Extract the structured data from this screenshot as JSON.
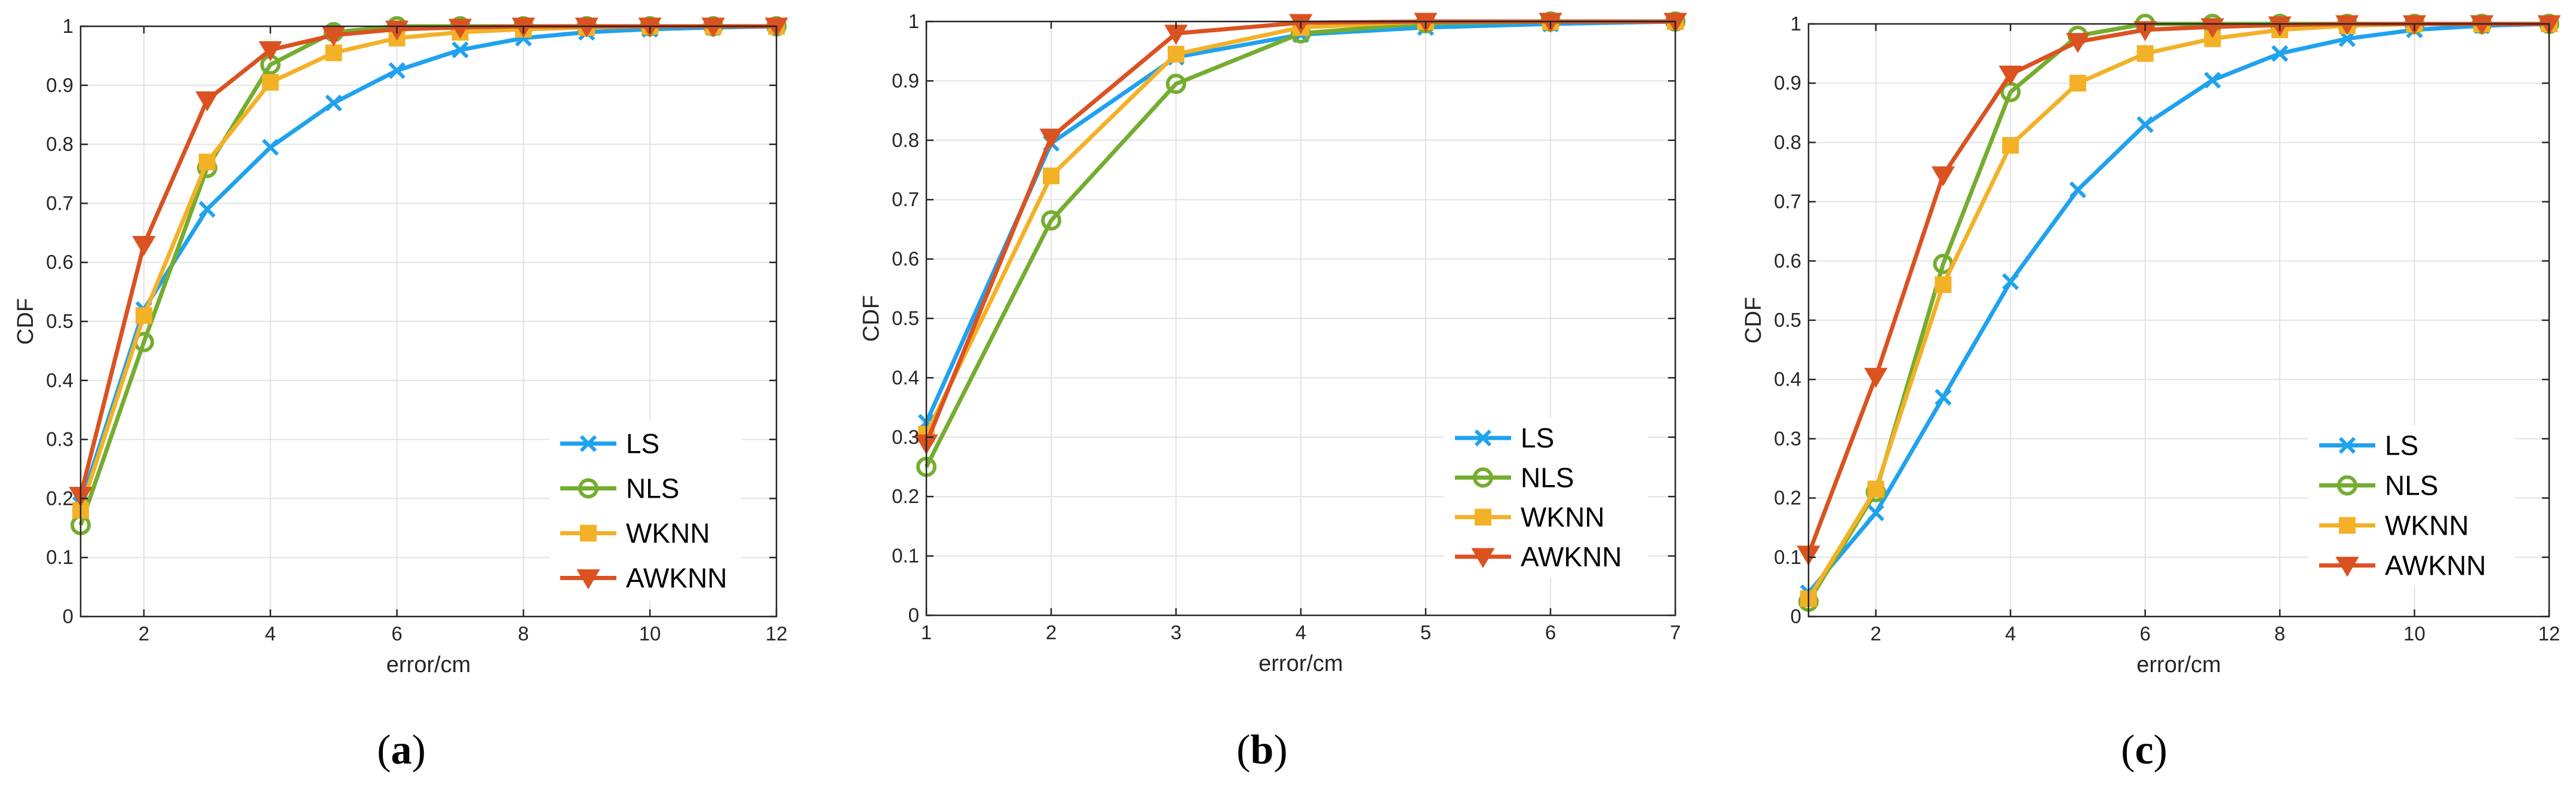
{
  "colors": {
    "LS": "#1fa2ef",
    "NLS": "#74ad2f",
    "WKNN": "#f3b127",
    "AWKNN": "#db5221",
    "grid": "#e3e3e3",
    "axis": "#262626"
  },
  "markers": {
    "LS": "x",
    "NLS": "circle",
    "WKNN": "square",
    "AWKNN": "triangle-down"
  },
  "chart_data": [
    {
      "id": "a",
      "type": "line",
      "caption_letter": "a",
      "caption_open": "(",
      "caption_close": ")",
      "xlabel": "error/cm",
      "ylabel": "CDF",
      "xlim": [
        1,
        12
      ],
      "ylim": [
        0,
        1
      ],
      "xticks": [
        2,
        4,
        6,
        8,
        10,
        12
      ],
      "yticks": [
        0,
        0.1,
        0.2,
        0.3,
        0.4,
        0.5,
        0.6,
        0.7,
        0.8,
        0.9,
        1
      ],
      "ytick_labels": [
        "0",
        "0.1",
        "0.2",
        "0.3",
        "0.4",
        "0.5",
        "0.6",
        "0.7",
        "0.8",
        "0.9",
        "1"
      ],
      "grid": true,
      "legend_position": "bottom-right",
      "x": [
        1,
        2,
        3,
        4,
        5,
        6,
        7,
        8,
        9,
        10,
        11,
        12
      ],
      "series": [
        {
          "name": "LS",
          "values": [
            0.19,
            0.52,
            0.69,
            0.795,
            0.87,
            0.925,
            0.96,
            0.98,
            0.99,
            0.995,
            0.998,
            1.0
          ]
        },
        {
          "name": "NLS",
          "values": [
            0.155,
            0.465,
            0.76,
            0.935,
            0.99,
            1.0,
            1.0,
            1.0,
            1.0,
            1.0,
            1.0,
            1.0
          ]
        },
        {
          "name": "WKNN",
          "values": [
            0.18,
            0.51,
            0.77,
            0.905,
            0.955,
            0.98,
            0.99,
            0.995,
            0.998,
            1.0,
            1.0,
            1.0
          ]
        },
        {
          "name": "AWKNN",
          "values": [
            0.205,
            0.63,
            0.875,
            0.96,
            0.985,
            0.995,
            0.998,
            1.0,
            1.0,
            1.0,
            1.0,
            1.0
          ]
        }
      ]
    },
    {
      "id": "b",
      "type": "line",
      "caption_letter": "b",
      "caption_open": "(",
      "caption_close": ")",
      "xlabel": "error/cm",
      "ylabel": "CDF",
      "xlim": [
        1,
        7
      ],
      "ylim": [
        0,
        1
      ],
      "xticks": [
        1,
        2,
        3,
        4,
        5,
        6,
        7
      ],
      "yticks": [
        0,
        0.1,
        0.2,
        0.3,
        0.4,
        0.5,
        0.6,
        0.7,
        0.8,
        0.9,
        1
      ],
      "ytick_labels": [
        "0",
        "0.1",
        "0.2",
        "0.3",
        "0.4",
        "0.5",
        "0.6",
        "0.7",
        "0.8",
        "0.9",
        "1"
      ],
      "grid": true,
      "legend_position": "bottom-right",
      "x": [
        1,
        2,
        3,
        4,
        5,
        6,
        7
      ],
      "series": [
        {
          "name": "LS",
          "values": [
            0.325,
            0.795,
            0.94,
            0.978,
            0.99,
            0.996,
            1.0
          ]
        },
        {
          "name": "NLS",
          "values": [
            0.25,
            0.665,
            0.895,
            0.98,
            0.997,
            1.0,
            1.0
          ]
        },
        {
          "name": "WKNN",
          "values": [
            0.305,
            0.74,
            0.945,
            0.99,
            1.0,
            1.0,
            1.0
          ]
        },
        {
          "name": "AWKNN",
          "values": [
            0.29,
            0.805,
            0.98,
            0.998,
            1.0,
            1.0,
            1.0
          ]
        }
      ]
    },
    {
      "id": "c",
      "type": "line",
      "caption_letter": "c",
      "caption_open": "(",
      "caption_close": ")",
      "xlabel": "error/cm",
      "ylabel": "CDF",
      "xlim": [
        1,
        12
      ],
      "ylim": [
        0,
        1
      ],
      "xticks": [
        2,
        4,
        6,
        8,
        10,
        12
      ],
      "yticks": [
        0,
        0.1,
        0.2,
        0.3,
        0.4,
        0.5,
        0.6,
        0.7,
        0.8,
        0.9,
        1
      ],
      "ytick_labels": [
        "0",
        "0.1",
        "0.2",
        "0.3",
        "0.4",
        "0.5",
        "0.6",
        "0.7",
        "0.8",
        "0.9",
        "1"
      ],
      "grid": true,
      "legend_position": "bottom-right",
      "x": [
        1,
        2,
        3,
        4,
        5,
        6,
        7,
        8,
        9,
        10,
        11,
        12
      ],
      "series": [
        {
          "name": "LS",
          "values": [
            0.04,
            0.175,
            0.37,
            0.565,
            0.72,
            0.83,
            0.905,
            0.95,
            0.975,
            0.99,
            0.997,
            1.0
          ]
        },
        {
          "name": "NLS",
          "values": [
            0.025,
            0.21,
            0.595,
            0.885,
            0.98,
            1.0,
            1.0,
            1.0,
            1.0,
            1.0,
            1.0,
            1.0
          ]
        },
        {
          "name": "WKNN",
          "values": [
            0.03,
            0.215,
            0.56,
            0.795,
            0.9,
            0.95,
            0.975,
            0.99,
            0.997,
            1.0,
            1.0,
            1.0
          ]
        },
        {
          "name": "AWKNN",
          "values": [
            0.105,
            0.405,
            0.745,
            0.915,
            0.97,
            0.99,
            0.995,
            0.998,
            1.0,
            1.0,
            1.0,
            1.0
          ]
        }
      ]
    }
  ]
}
